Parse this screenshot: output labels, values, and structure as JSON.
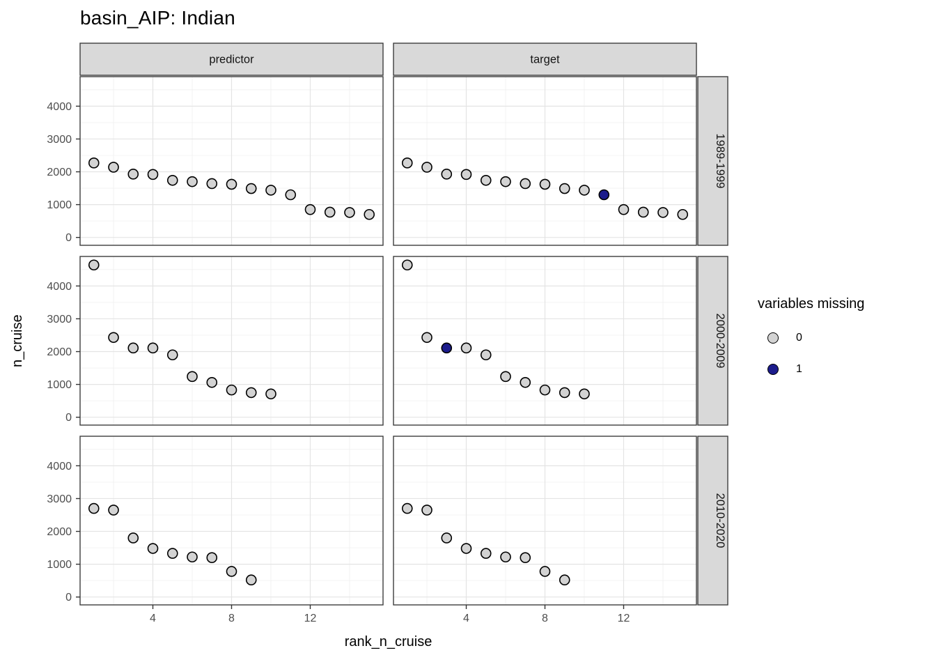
{
  "title": "basin_AIP: Indian",
  "chart_data": {
    "type": "scatter",
    "title": "basin_AIP: Indian",
    "xlabel": "rank_n_cruise",
    "ylabel": "n_cruise",
    "facet_cols": [
      "predictor",
      "target"
    ],
    "facet_rows": [
      "1989-1999",
      "2000-2009",
      "2010-2020"
    ],
    "x_ticks": [
      4,
      8,
      12
    ],
    "y_ticks": [
      0,
      1000,
      2000,
      3000,
      4000
    ],
    "xlim": [
      0.3,
      15.7
    ],
    "ylim": [
      -240,
      4900
    ],
    "grid": true,
    "legend": {
      "title": "variables missing",
      "position": "right",
      "entries": [
        {
          "label": "0",
          "color": "#d3d3d3"
        },
        {
          "label": "1",
          "color": "#1c1c8c"
        }
      ]
    },
    "point_stroke": "#000000",
    "panels": [
      {
        "col": "predictor",
        "row": "1989-1999",
        "x": [
          1,
          2,
          3,
          4,
          5,
          6,
          7,
          8,
          9,
          10,
          11,
          12,
          13,
          14,
          15
        ],
        "y": [
          2270,
          2140,
          1930,
          1920,
          1740,
          1700,
          1640,
          1620,
          1490,
          1440,
          1300,
          850,
          770,
          760,
          700
        ],
        "missing": [
          0,
          0,
          0,
          0,
          0,
          0,
          0,
          0,
          0,
          0,
          0,
          0,
          0,
          0,
          0
        ]
      },
      {
        "col": "target",
        "row": "1989-1999",
        "x": [
          1,
          2,
          3,
          4,
          5,
          6,
          7,
          8,
          9,
          10,
          11,
          12,
          13,
          14,
          15
        ],
        "y": [
          2270,
          2140,
          1930,
          1920,
          1740,
          1700,
          1640,
          1620,
          1490,
          1440,
          1300,
          850,
          770,
          760,
          700
        ],
        "missing": [
          0,
          0,
          0,
          0,
          0,
          0,
          0,
          0,
          0,
          0,
          1,
          0,
          0,
          0,
          0
        ]
      },
      {
        "col": "predictor",
        "row": "2000-2009",
        "x": [
          1,
          2,
          3,
          4,
          5,
          6,
          7,
          8,
          9,
          10
        ],
        "y": [
          4640,
          2430,
          2110,
          2110,
          1900,
          1240,
          1060,
          830,
          750,
          710
        ],
        "missing": [
          0,
          0,
          0,
          0,
          0,
          0,
          0,
          0,
          0,
          0
        ]
      },
      {
        "col": "target",
        "row": "2000-2009",
        "x": [
          1,
          2,
          3,
          4,
          5,
          6,
          7,
          8,
          9,
          10
        ],
        "y": [
          4640,
          2430,
          2110,
          2110,
          1900,
          1240,
          1060,
          830,
          750,
          710
        ],
        "missing": [
          0,
          0,
          1,
          0,
          0,
          0,
          0,
          0,
          0,
          0
        ]
      },
      {
        "col": "predictor",
        "row": "2010-2020",
        "x": [
          1,
          2,
          3,
          4,
          5,
          6,
          7,
          8,
          9
        ],
        "y": [
          2700,
          2650,
          1800,
          1480,
          1330,
          1220,
          1200,
          780,
          520
        ],
        "missing": [
          0,
          0,
          0,
          0,
          0,
          0,
          0,
          0,
          0
        ]
      },
      {
        "col": "target",
        "row": "2010-2020",
        "x": [
          1,
          2,
          3,
          4,
          5,
          6,
          7,
          8,
          9
        ],
        "y": [
          2700,
          2650,
          1800,
          1480,
          1330,
          1220,
          1200,
          780,
          520
        ],
        "missing": [
          0,
          0,
          0,
          0,
          0,
          0,
          0,
          0,
          0
        ]
      }
    ]
  }
}
